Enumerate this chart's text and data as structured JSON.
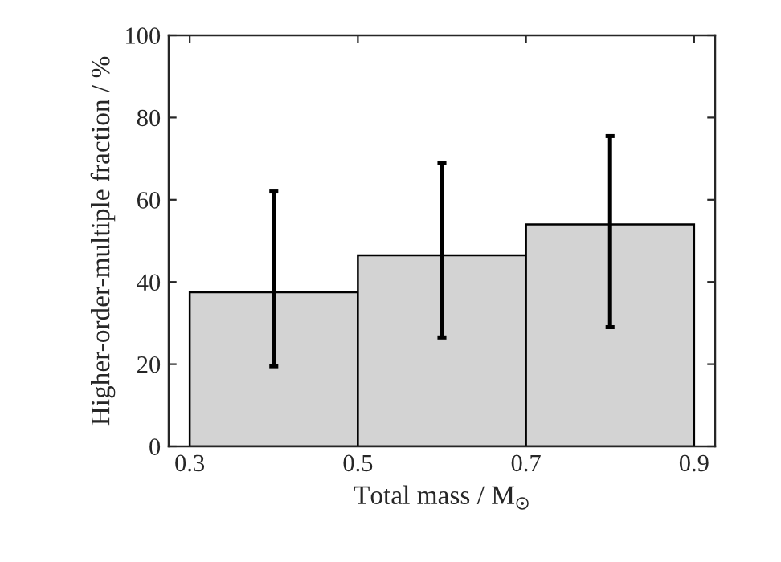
{
  "chart_data": {
    "type": "histogram",
    "xlabel": "Total mass / M$_{☉}$",
    "ylabel": "Higher-order-multiple fraction / %",
    "bins": [
      0.3,
      0.5,
      0.7,
      0.9
    ],
    "values": [
      37.5,
      46.5,
      54
    ],
    "errors": [
      [
        19.5,
        62
      ],
      [
        26.5,
        69
      ],
      [
        29,
        75.5
      ]
    ],
    "color": "#d3d3d3",
    "xlim": [
      0.275,
      0.925
    ],
    "xticks": [
      0.3,
      0.5,
      0.7,
      0.9
    ],
    "ylim": [
      0,
      100
    ],
    "yticks": [
      0,
      20,
      40,
      60,
      80,
      100
    ],
    "grid": false
  }
}
